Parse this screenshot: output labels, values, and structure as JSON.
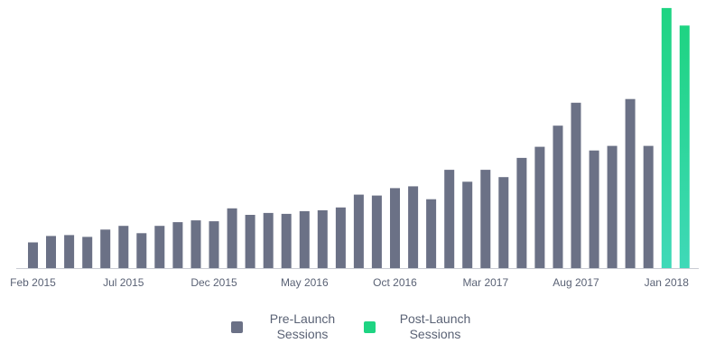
{
  "chart_data": {
    "type": "bar",
    "title": "",
    "xlabel": "",
    "ylabel": "",
    "grid": false,
    "legend_placement": "bottom-center",
    "categories": [
      "Feb 2015",
      "Mar 2015",
      "Apr 2015",
      "May 2015",
      "Jun 2015",
      "Jul 2015",
      "Aug 2015",
      "Sep 2015",
      "Oct 2015",
      "Nov 2015",
      "Dec 2015",
      "Jan 2016",
      "Feb 2016",
      "Mar 2016",
      "Apr 2016",
      "May 2016",
      "Jun 2016",
      "Jul 2016",
      "Aug 2016",
      "Sep 2016",
      "Oct 2016",
      "Nov 2016",
      "Dec 2016",
      "Jan 2017",
      "Feb 2017",
      "Mar 2017",
      "Apr 2017",
      "May 2017",
      "Jun 2017",
      "Jul 2017",
      "Aug 2017",
      "Sep 2017",
      "Oct 2017",
      "Nov 2017",
      "Dec 2017",
      "Jan 2018",
      "Feb 2018"
    ],
    "tick_labels": [
      "Feb 2015",
      "Jul 2015",
      "Dec 2015",
      "May 2016",
      "Oct 2016",
      "Mar 2017",
      "Aug 2017",
      "Jan 2018"
    ],
    "tick_indices": [
      0,
      5,
      10,
      15,
      20,
      25,
      30,
      35
    ],
    "ylim": [
      0,
      280
    ],
    "series": [
      {
        "name": "Pre-Launch Sessions",
        "color": "#6b7186",
        "values": [
          28,
          35,
          36,
          34,
          42,
          46,
          38,
          46,
          50,
          52,
          51,
          65,
          58,
          60,
          59,
          62,
          63,
          66,
          80,
          79,
          87,
          89,
          75,
          107,
          94,
          107,
          99,
          120,
          132,
          155,
          180,
          128,
          133,
          184,
          133,
          null,
          null
        ]
      },
      {
        "name": "Post-Launch Sessions",
        "color": "#1ed482",
        "color_bottom": "#3fd9b8",
        "values": [
          null,
          null,
          null,
          null,
          null,
          null,
          null,
          null,
          null,
          null,
          null,
          null,
          null,
          null,
          null,
          null,
          null,
          null,
          null,
          null,
          null,
          null,
          null,
          null,
          null,
          null,
          null,
          null,
          null,
          null,
          null,
          null,
          null,
          null,
          null,
          283,
          264
        ]
      }
    ]
  },
  "legend": {
    "pre_line1": "Pre-Launch",
    "pre_line2": "Sessions",
    "post_line1": "Post-Launch",
    "post_line2": "Sessions",
    "pre_color": "#6b7186",
    "post_color": "#1ed482"
  }
}
